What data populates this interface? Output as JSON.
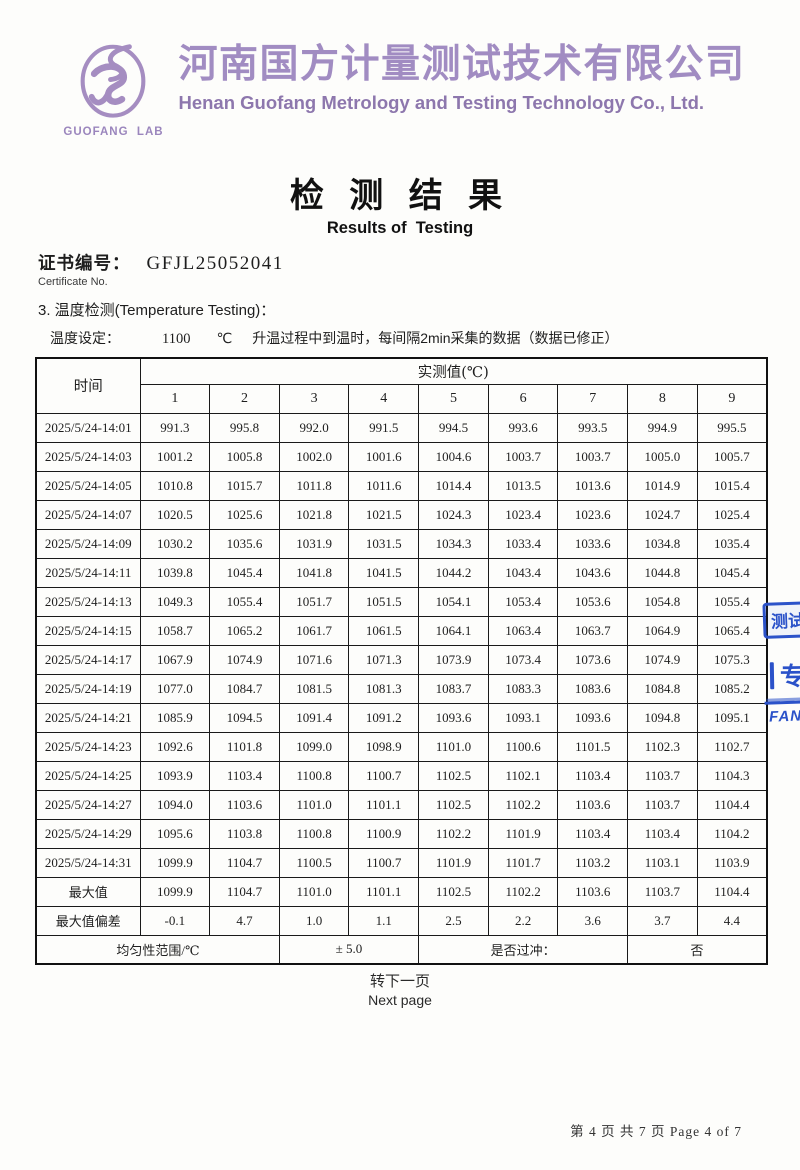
{
  "header": {
    "logo_caption": "GUOFANG  LAB",
    "company_cn": "河南国方计量测试技术有限公司",
    "company_en": "Henan Guofang Metrology and Testing Technology Co., Ltd.",
    "brand_purple": "#a18cc2"
  },
  "title": {
    "cn": "检 测 结 果",
    "en": "Results of  Testing"
  },
  "certificate": {
    "label_cn": "证书编号：",
    "number": "GFJL25052041",
    "label_en": "Certificate No."
  },
  "section": {
    "heading": "3. 温度检测(Temperature Testing)：",
    "setting_label": "温度设定：",
    "setting_value": "1100",
    "setting_unit": "℃",
    "setting_desc": "升温过程中到温时，每间隔2min采集的数据（数据已修正）"
  },
  "table": {
    "time_header": "时间",
    "value_header": "实测值(℃)",
    "channels": [
      "1",
      "2",
      "3",
      "4",
      "5",
      "6",
      "7",
      "8",
      "9"
    ],
    "rows": [
      {
        "label": "2025/5/24-14:01",
        "values": [
          "991.3",
          "995.8",
          "992.0",
          "991.5",
          "994.5",
          "993.6",
          "993.5",
          "994.9",
          "995.5"
        ]
      },
      {
        "label": "2025/5/24-14:03",
        "values": [
          "1001.2",
          "1005.8",
          "1002.0",
          "1001.6",
          "1004.6",
          "1003.7",
          "1003.7",
          "1005.0",
          "1005.7"
        ]
      },
      {
        "label": "2025/5/24-14:05",
        "values": [
          "1010.8",
          "1015.7",
          "1011.8",
          "1011.6",
          "1014.4",
          "1013.5",
          "1013.6",
          "1014.9",
          "1015.4"
        ]
      },
      {
        "label": "2025/5/24-14:07",
        "values": [
          "1020.5",
          "1025.6",
          "1021.8",
          "1021.5",
          "1024.3",
          "1023.4",
          "1023.6",
          "1024.7",
          "1025.4"
        ]
      },
      {
        "label": "2025/5/24-14:09",
        "values": [
          "1030.2",
          "1035.6",
          "1031.9",
          "1031.5",
          "1034.3",
          "1033.4",
          "1033.6",
          "1034.8",
          "1035.4"
        ]
      },
      {
        "label": "2025/5/24-14:11",
        "values": [
          "1039.8",
          "1045.4",
          "1041.8",
          "1041.5",
          "1044.2",
          "1043.4",
          "1043.6",
          "1044.8",
          "1045.4"
        ]
      },
      {
        "label": "2025/5/24-14:13",
        "values": [
          "1049.3",
          "1055.4",
          "1051.7",
          "1051.5",
          "1054.1",
          "1053.4",
          "1053.6",
          "1054.8",
          "1055.4"
        ]
      },
      {
        "label": "2025/5/24-14:15",
        "values": [
          "1058.7",
          "1065.2",
          "1061.7",
          "1061.5",
          "1064.1",
          "1063.4",
          "1063.7",
          "1064.9",
          "1065.4"
        ]
      },
      {
        "label": "2025/5/24-14:17",
        "values": [
          "1067.9",
          "1074.9",
          "1071.6",
          "1071.3",
          "1073.9",
          "1073.4",
          "1073.6",
          "1074.9",
          "1075.3"
        ]
      },
      {
        "label": "2025/5/24-14:19",
        "values": [
          "1077.0",
          "1084.7",
          "1081.5",
          "1081.3",
          "1083.7",
          "1083.3",
          "1083.6",
          "1084.8",
          "1085.2"
        ]
      },
      {
        "label": "2025/5/24-14:21",
        "values": [
          "1085.9",
          "1094.5",
          "1091.4",
          "1091.2",
          "1093.6",
          "1093.1",
          "1093.6",
          "1094.8",
          "1095.1"
        ]
      },
      {
        "label": "2025/5/24-14:23",
        "values": [
          "1092.6",
          "1101.8",
          "1099.0",
          "1098.9",
          "1101.0",
          "1100.6",
          "1101.5",
          "1102.3",
          "1102.7"
        ]
      },
      {
        "label": "2025/5/24-14:25",
        "values": [
          "1093.9",
          "1103.4",
          "1100.8",
          "1100.7",
          "1102.5",
          "1102.1",
          "1103.4",
          "1103.7",
          "1104.3"
        ]
      },
      {
        "label": "2025/5/24-14:27",
        "values": [
          "1094.0",
          "1103.6",
          "1101.0",
          "1101.1",
          "1102.5",
          "1102.2",
          "1103.6",
          "1103.7",
          "1104.4"
        ]
      },
      {
        "label": "2025/5/24-14:29",
        "values": [
          "1095.6",
          "1103.8",
          "1100.8",
          "1100.9",
          "1102.2",
          "1101.9",
          "1103.4",
          "1103.4",
          "1104.2"
        ]
      },
      {
        "label": "2025/5/24-14:31",
        "values": [
          "1099.9",
          "1104.7",
          "1100.5",
          "1100.7",
          "1101.9",
          "1101.7",
          "1103.2",
          "1103.1",
          "1103.9"
        ]
      },
      {
        "label": "最大值",
        "values": [
          "1099.9",
          "1104.7",
          "1101.0",
          "1101.1",
          "1102.5",
          "1102.2",
          "1103.6",
          "1103.7",
          "1104.4"
        ]
      },
      {
        "label": "最大值偏差",
        "values": [
          "-0.1",
          "4.7",
          "1.0",
          "1.1",
          "2.5",
          "2.2",
          "3.6",
          "3.7",
          "4.4"
        ]
      }
    ],
    "summary": {
      "uniformity_label": "均匀性范围/℃",
      "uniformity_value": "± 5.0",
      "overshoot_label": "是否过冲：",
      "overshoot_value": "否"
    }
  },
  "pagination": {
    "next_cn": "转下一页",
    "next_en": "Next page"
  },
  "footer": {
    "page_text": "第 4 页 共 7 页 Page 4 of 7"
  },
  "stamp": {
    "color": "#2b52c9",
    "fragment_top": "测试",
    "fragment_mid": "专",
    "fragment_bottom": "FAN"
  }
}
